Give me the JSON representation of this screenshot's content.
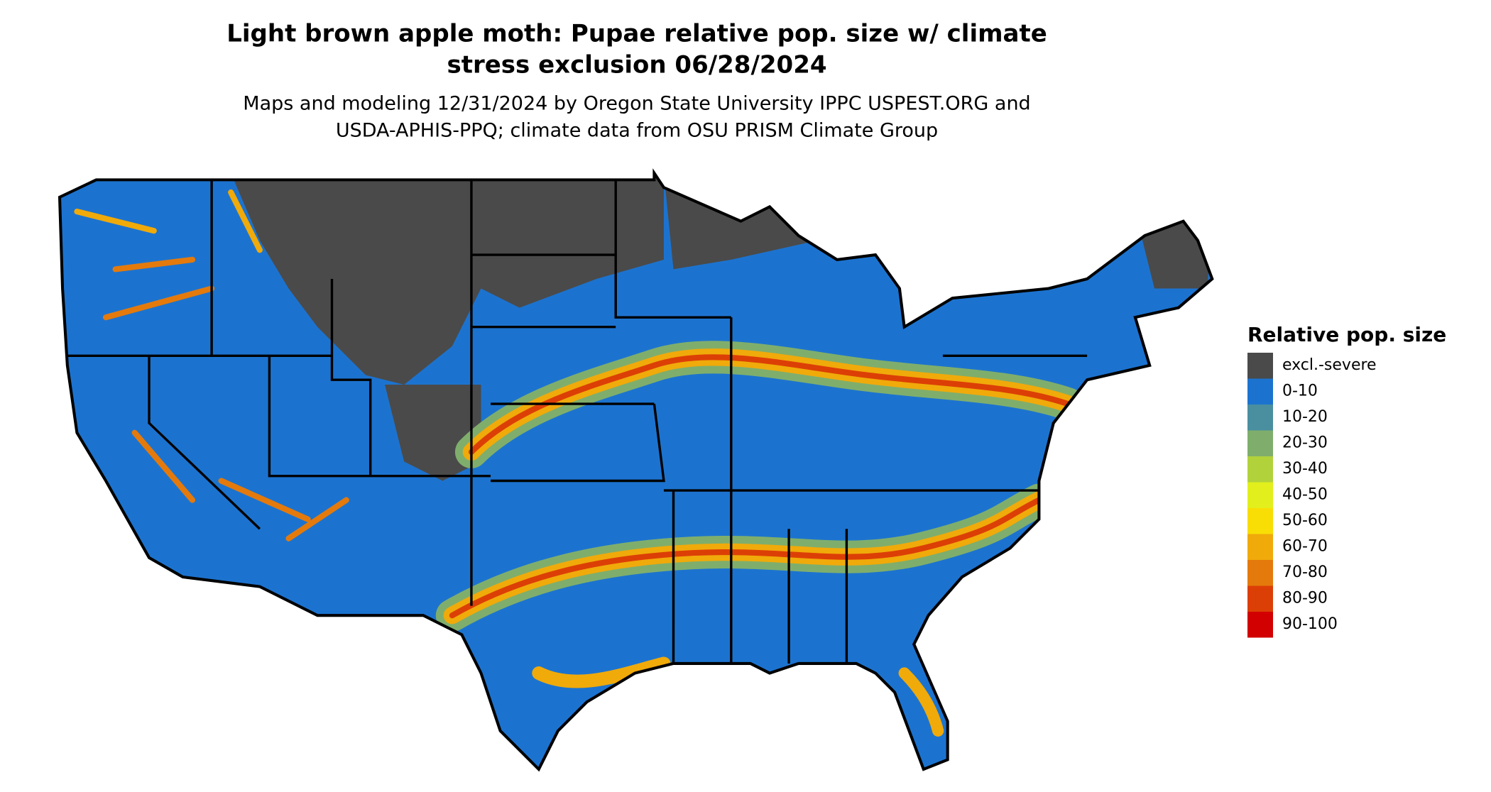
{
  "title": [
    "Light brown apple moth: Pupae relative pop. size w/ climate",
    "stress exclusion 06/28/2024"
  ],
  "subtitle": [
    "Maps and modeling 12/31/2024 by Oregon State University IPPC USPEST.ORG and",
    "USDA-APHIS-PPQ; climate data from OSU PRISM Climate Group"
  ],
  "legend": {
    "title": "Relative pop. size",
    "items": [
      {
        "label": "excl.-severe",
        "color": "#4a4a4a"
      },
      {
        "label": "0-10",
        "color": "#1c73cf"
      },
      {
        "label": "10-20",
        "color": "#4a8fa0"
      },
      {
        "label": "20-30",
        "color": "#7fae6c"
      },
      {
        "label": "30-40",
        "color": "#b2d23c"
      },
      {
        "label": "40-50",
        "color": "#e2ef1c"
      },
      {
        "label": "50-60",
        "color": "#f8de05"
      },
      {
        "label": "60-70",
        "color": "#f0aa0a"
      },
      {
        "label": "70-80",
        "color": "#e47a0c"
      },
      {
        "label": "80-90",
        "color": "#dc3f06"
      },
      {
        "label": "90-100",
        "color": "#d20000"
      }
    ]
  }
}
